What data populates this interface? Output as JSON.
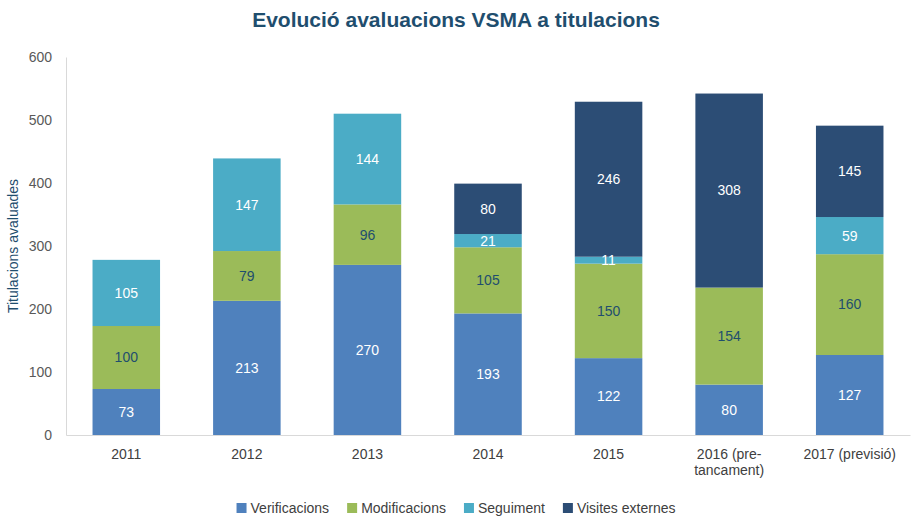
{
  "chart_data": {
    "type": "bar",
    "title": "Evolució avaluacions VSMA a titulacions",
    "y_label": "Titulacions avaluades",
    "categories": [
      "2011",
      "2012",
      "2013",
      "2014",
      "2015",
      "2016 (pre-tancament)",
      "2017 (previsió)"
    ],
    "series": [
      {
        "name": "Verificacions",
        "color": "#4f81bd",
        "values": [
          73,
          213,
          270,
          193,
          122,
          80,
          127
        ]
      },
      {
        "name": "Modificacions",
        "color": "#9bbb59",
        "values": [
          100,
          79,
          96,
          105,
          150,
          154,
          160
        ]
      },
      {
        "name": "Seguiment",
        "color": "#4bacc6",
        "values": [
          105,
          147,
          144,
          21,
          11,
          null,
          59
        ]
      },
      {
        "name": "Visites externes",
        "color": "#2c4d75",
        "values": [
          null,
          null,
          null,
          80,
          246,
          308,
          145
        ]
      }
    ],
    "ylim": [
      0,
      600
    ],
    "yticks": [
      0,
      100,
      200,
      300,
      400,
      500,
      600
    ],
    "stacked": true,
    "data_labels": true,
    "grid": false,
    "legend": "bottom"
  }
}
